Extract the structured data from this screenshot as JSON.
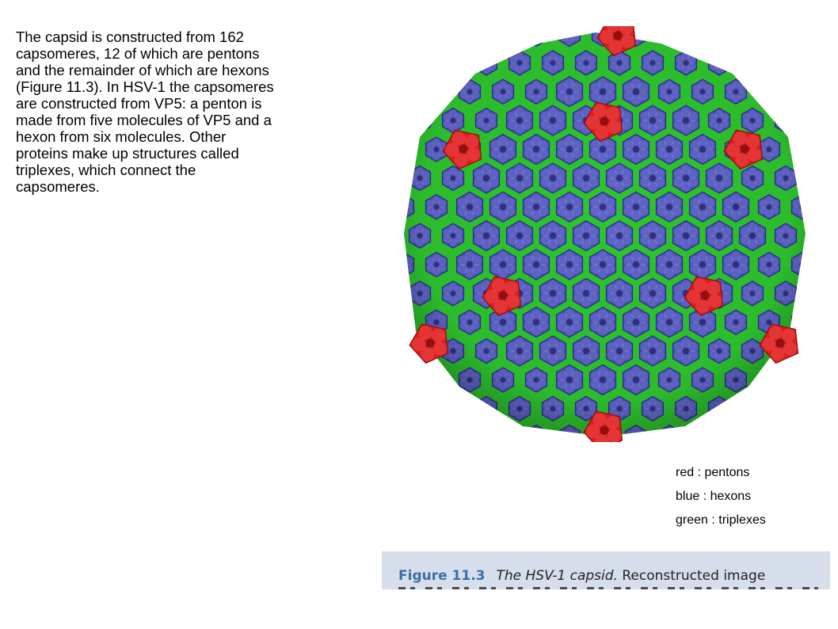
{
  "paragraph": "The capsid is constructed from 162\ncapsomeres, 12 of which are pentons\nand the remainder of which are hexons\n(Figure 11.3). In HSV-1 the capsomeres\nare constructed from VP5: a penton is\nmade from five molecules of VP5 and a\nhexon from six molecules. Other\nproteins make up structures called\ntriplexes, which connect the\ncapsomeres.",
  "legend": {
    "red": "red : pentons",
    "blue": "blue : hexons",
    "green": "green : triplexes"
  },
  "caption": {
    "figure_number": "Figure 11.3",
    "title": "The HSV-1 capsid.",
    "text": " Reconstructed image"
  },
  "colors": {
    "penton": "#e01a1a",
    "hexon": "#4b4fc0",
    "triplex": "#2ec52e",
    "caption_bg": "#d6deeb"
  }
}
